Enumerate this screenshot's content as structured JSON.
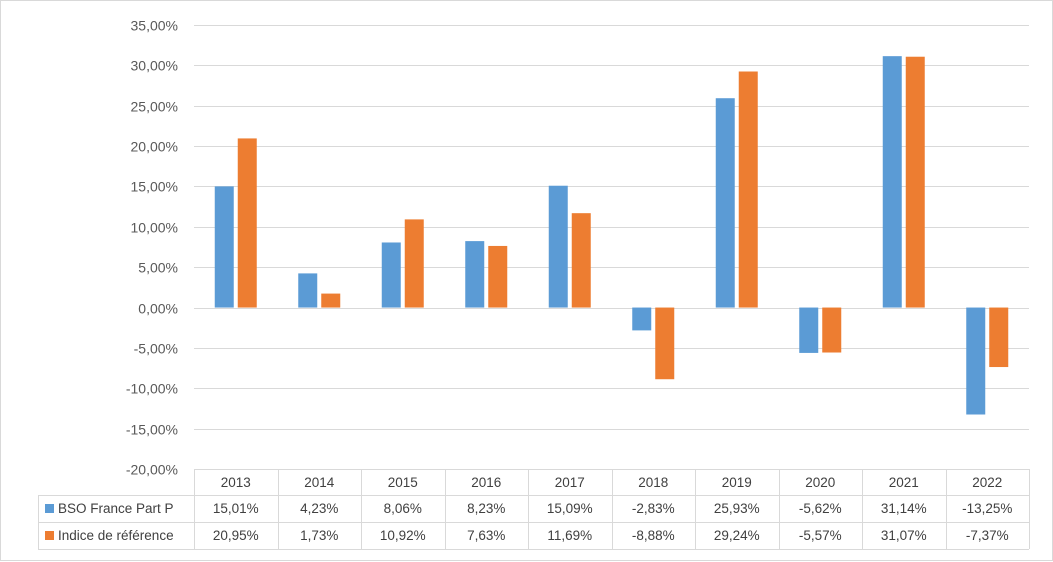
{
  "chart_data": {
    "type": "bar",
    "categories": [
      "2013",
      "2014",
      "2015",
      "2016",
      "2017",
      "2018",
      "2019",
      "2020",
      "2021",
      "2022"
    ],
    "series": [
      {
        "name": "BSO France Part P",
        "color": "#5b9bd5",
        "values": [
          15.01,
          4.23,
          8.06,
          8.23,
          15.09,
          -2.83,
          25.93,
          -5.62,
          31.14,
          -13.25
        ],
        "labels": [
          "15,01%",
          "4,23%",
          "8,06%",
          "8,23%",
          "15,09%",
          "-2,83%",
          "25,93%",
          "-5,62%",
          "31,14%",
          "-13,25%"
        ]
      },
      {
        "name": "Indice de référence",
        "color": "#ed7d31",
        "values": [
          20.95,
          1.73,
          10.92,
          7.63,
          11.69,
          -8.88,
          29.24,
          -5.57,
          31.07,
          -7.37
        ],
        "labels": [
          "20,95%",
          "1,73%",
          "10,92%",
          "7,63%",
          "11,69%",
          "-8,88%",
          "29,24%",
          "-5,57%",
          "31,07%",
          "-7,37%"
        ]
      }
    ],
    "ylim": [
      -20,
      35
    ],
    "yticks": [
      35,
      30,
      25,
      20,
      15,
      10,
      5,
      0,
      -5,
      -10,
      -15,
      -20
    ],
    "ytick_labels": [
      "35,00%",
      "30,00%",
      "25,00%",
      "20,00%",
      "15,00%",
      "10,00%",
      "5,00%",
      "0,00%",
      "-5,00%",
      "-10,00%",
      "-15,00%",
      "-20,00%"
    ],
    "grid": true,
    "legend": "data-table-below",
    "gridline_color": "#d9d9d9"
  }
}
